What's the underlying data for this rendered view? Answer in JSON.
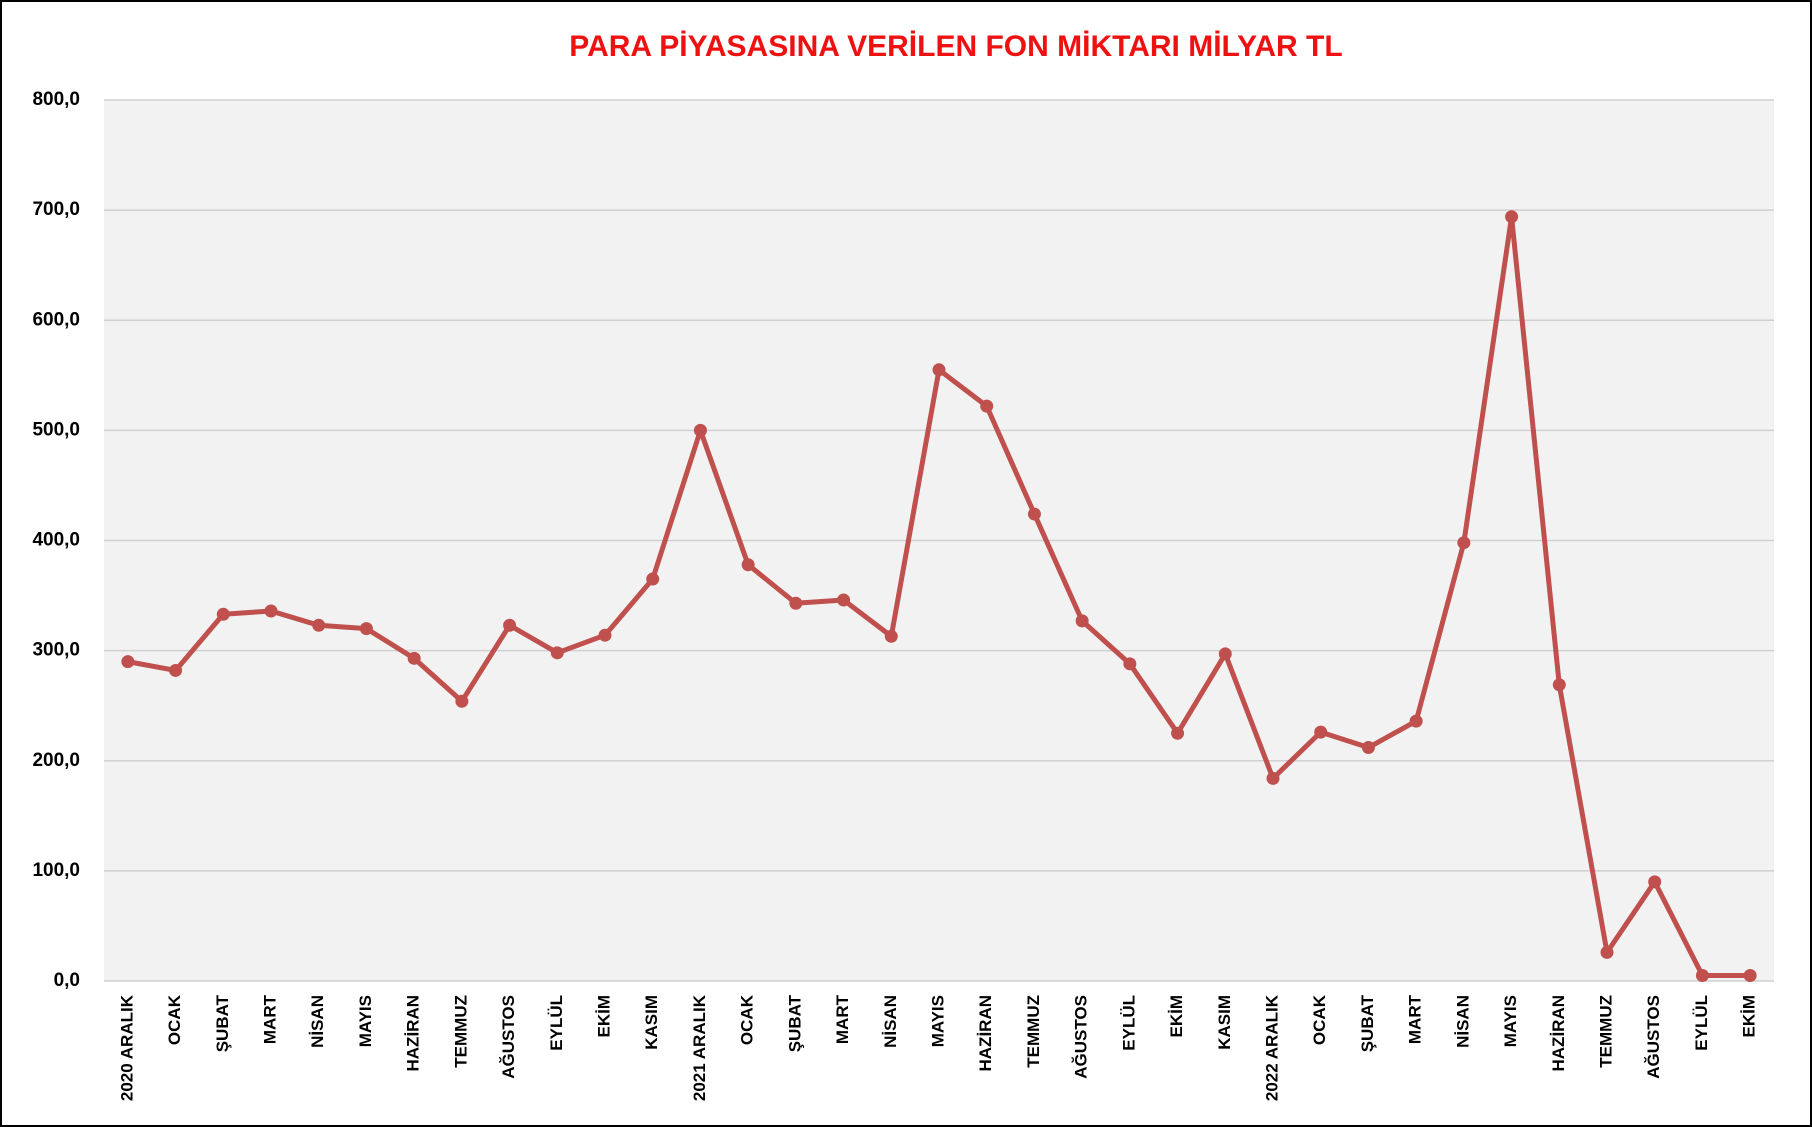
{
  "chart_data": {
    "type": "line",
    "title": "PARA PİYASASINA VERİLEN FON MİKTARI MİLYAR TL",
    "categories": [
      "2020 ARALIK",
      "OCAK",
      "ŞUBAT",
      "MART",
      "NİSAN",
      "MAYIS",
      "HAZİRAN",
      "TEMMUZ",
      "AĞUSTOS",
      "EYLÜL",
      "EKİM",
      "KASIM",
      "2021 ARALIK",
      "OCAK",
      "ŞUBAT",
      "MART",
      "NİSAN",
      "MAYIS",
      "HAZİRAN",
      "TEMMUZ",
      "AĞUSTOS",
      "EYLÜL",
      "EKİM",
      "KASIM",
      "2022 ARALIK",
      "OCAK",
      "ŞUBAT",
      "MART",
      "NİSAN",
      "MAYIS",
      "HAZİRAN",
      "TEMMUZ",
      "AĞUSTOS",
      "EYLÜL",
      "EKİM"
    ],
    "values": [
      290,
      282,
      333,
      336,
      323,
      320,
      293,
      254,
      323,
      298,
      314,
      365,
      500,
      378,
      343,
      346,
      313,
      555,
      522,
      424,
      327,
      288,
      225,
      297,
      184,
      226,
      212,
      236,
      398,
      694,
      269,
      26,
      90,
      5,
      5
    ],
    "color": "#c0504d",
    "ylim": [
      0,
      800
    ],
    "yticks": [
      {
        "value": 0,
        "label": "0,0"
      },
      {
        "value": 100,
        "label": "100,0"
      },
      {
        "value": 200,
        "label": "200,0"
      },
      {
        "value": 300,
        "label": "300,0"
      },
      {
        "value": 400,
        "label": "400,0"
      },
      {
        "value": 500,
        "label": "500,0"
      },
      {
        "value": 600,
        "label": "600,0"
      },
      {
        "value": 700,
        "label": "700,0"
      },
      {
        "value": 800,
        "label": "800,0"
      }
    ],
    "grid": true
  }
}
